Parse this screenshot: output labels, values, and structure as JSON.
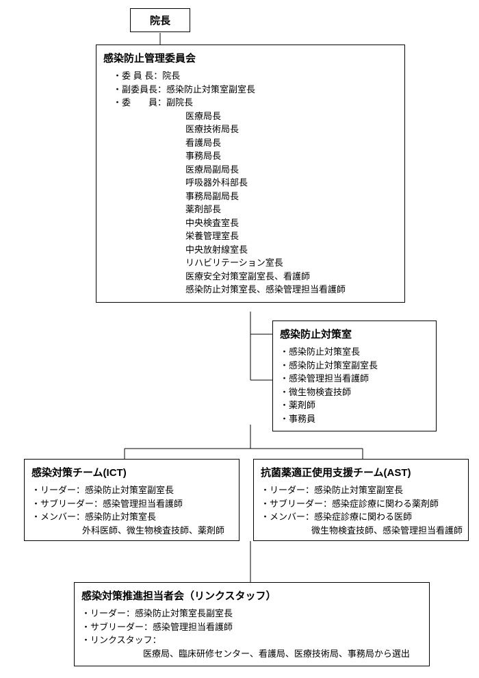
{
  "diagram": {
    "type": "org-chart",
    "background_color": "#ffffff",
    "line_color": "#000000",
    "line_width": 1,
    "font_color": "#000000",
    "title_fontsize": 15,
    "body_fontsize": 13
  },
  "director": {
    "title": "院長"
  },
  "committee": {
    "title": "感染防止管理委員会",
    "chair_label": "・委 員 長：",
    "chair_value": "院長",
    "vice_label": "・副委員長：",
    "vice_value": "感染防止対策室副室長",
    "member_label": "・委　　員：",
    "members": [
      "副院長",
      "医療局長",
      "医療技術局長",
      "看護局長",
      "事務局長",
      "医療局副局長",
      "呼吸器外科部長",
      "事務局副局長",
      "薬剤部長",
      "中央検査室長",
      "栄養管理室長",
      "中央放射線室長",
      "リハビリテーション室長",
      "医療安全対策室副室長、看護師",
      "感染防止対策室長、感染管理担当看護師"
    ]
  },
  "office": {
    "title": "感染防止対策室",
    "items": [
      "・感染防止対策室長",
      "・感染防止対策室副室長",
      "・感染管理担当看護師",
      "・微生物検査技師",
      "・薬剤師",
      "・事務員"
    ]
  },
  "ict": {
    "title": "感染対策チーム(ICT)",
    "leader": "・リーダー：感染防止対策室副室長",
    "subleader": "・サブリーダー：感染管理担当看護師",
    "member_label": "・メンバー：感染防止対策室長",
    "member_extra": "外科医師、微生物検査技師、薬剤師"
  },
  "ast": {
    "title": "抗菌薬適正使用支援チーム(AST)",
    "leader": "・リーダー：感染防止対策室副室長",
    "subleader": "・サブリーダー：感染症診療に関わる薬剤師",
    "member_label": "・メンバー：感染症診療に関わる医師",
    "member_extra": "微生物検査技師、感染管理担当看護師"
  },
  "link": {
    "title": "感染対策推進担当者会（リンクスタッフ）",
    "leader": "・リーダー：感染防止対策室長副室長",
    "subleader": "・サブリーダー：感染管理担当看護師",
    "staff_label": "・リンクスタッフ：",
    "staff_value": "医療局、臨床研修センター、看護局、医療技術局、事務局から選出"
  }
}
